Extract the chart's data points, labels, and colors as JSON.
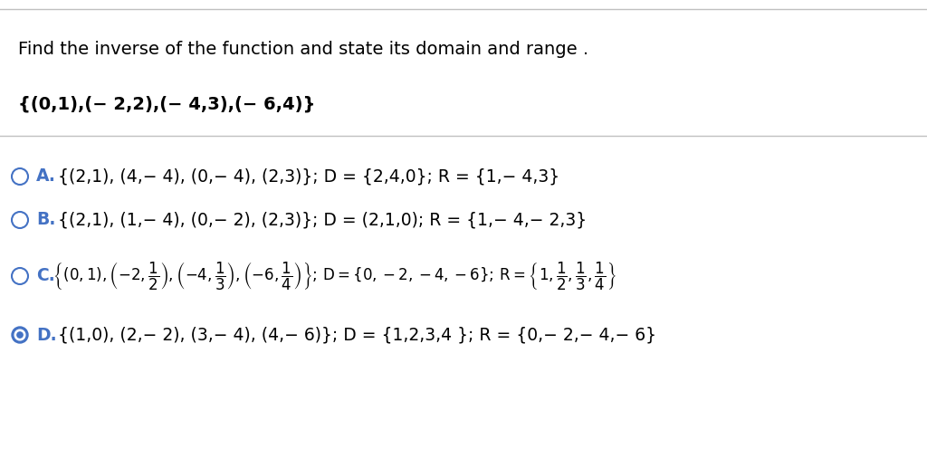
{
  "background_color": "#ffffff",
  "question_text": "Find the inverse of the function and state its domain and range .",
  "function_set": "{(0,1),(− 2,2),(− 4,3),(− 6,4)}",
  "option_A_bold": "A.",
  "option_A_text": " {(2,1), (4,− 4), (0,− 4), (2,3)}; D = {2,4,0}; R = {1,− 4,3}",
  "option_B_bold": "B.",
  "option_B_text": " {(2,1), (1,− 4), (0,− 2), (2,3)}; D = (2,1,0); R = {1,− 4,− 2,3}",
  "option_C_bold": "C.",
  "option_D_bold": "D.",
  "option_D_text": " {(1,0), (2,− 2), (3,− 4), (4,− 6)}; D = {1,2,3,4 }; R = {0,− 2,− 4,− 6}",
  "circle_edge_color": "#4472c4",
  "circle_selected_fill": "#4472c4",
  "text_color": "#000000",
  "label_color": "#4472c4",
  "font_size_question": 14,
  "font_size_options": 13.5,
  "font_size_set": 14
}
